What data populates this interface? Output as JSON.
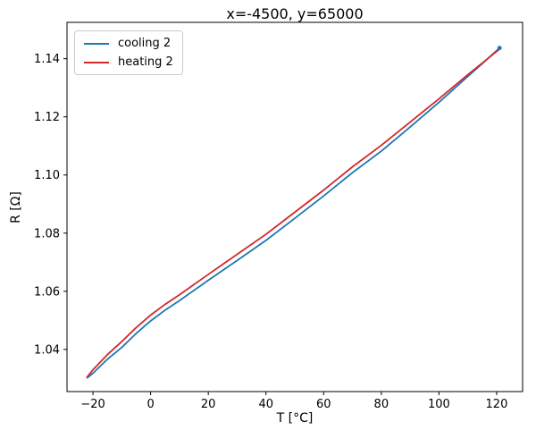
{
  "title": "x=-4500, y=65000",
  "chart_data": {
    "type": "line",
    "title": "x=-4500, y=65000",
    "xlabel": "T [°C]",
    "ylabel": "R [Ω]",
    "xlim": [
      -29,
      129
    ],
    "ylim": [
      1.0255,
      1.1525
    ],
    "x_ticks": [
      -20,
      0,
      20,
      40,
      60,
      80,
      100,
      120
    ],
    "y_ticks": [
      1.04,
      1.06,
      1.08,
      1.1,
      1.12,
      1.14
    ],
    "grid": false,
    "legend_position": "upper left",
    "series": [
      {
        "name": "cooling 2",
        "color": "#1f77b4",
        "x": [
          121,
          115,
          110,
          100,
          90,
          80,
          70,
          60,
          50,
          40,
          30,
          20,
          10,
          5,
          0,
          -5,
          -10,
          -15,
          -20,
          -22
        ],
        "y": [
          1.1437,
          1.1383,
          1.1339,
          1.125,
          1.1165,
          1.1082,
          1.1008,
          1.0928,
          1.0851,
          1.0775,
          1.0706,
          1.0638,
          1.0568,
          1.0535,
          1.0498,
          1.0455,
          1.0407,
          1.0366,
          1.0318,
          1.0302
        ]
      },
      {
        "name": "heating 2",
        "color": "#d62728",
        "x": [
          -22,
          -20,
          -15,
          -10,
          -5,
          0,
          5,
          10,
          20,
          30,
          40,
          50,
          60,
          70,
          80,
          90,
          100,
          110,
          115,
          121
        ],
        "y": [
          1.0305,
          1.033,
          1.0382,
          1.0427,
          1.0475,
          1.0518,
          1.0555,
          1.0588,
          1.0658,
          1.0727,
          1.0796,
          1.0872,
          1.0948,
          1.1028,
          1.1102,
          1.1182,
          1.1262,
          1.1345,
          1.1385,
          1.1433
        ]
      }
    ]
  }
}
